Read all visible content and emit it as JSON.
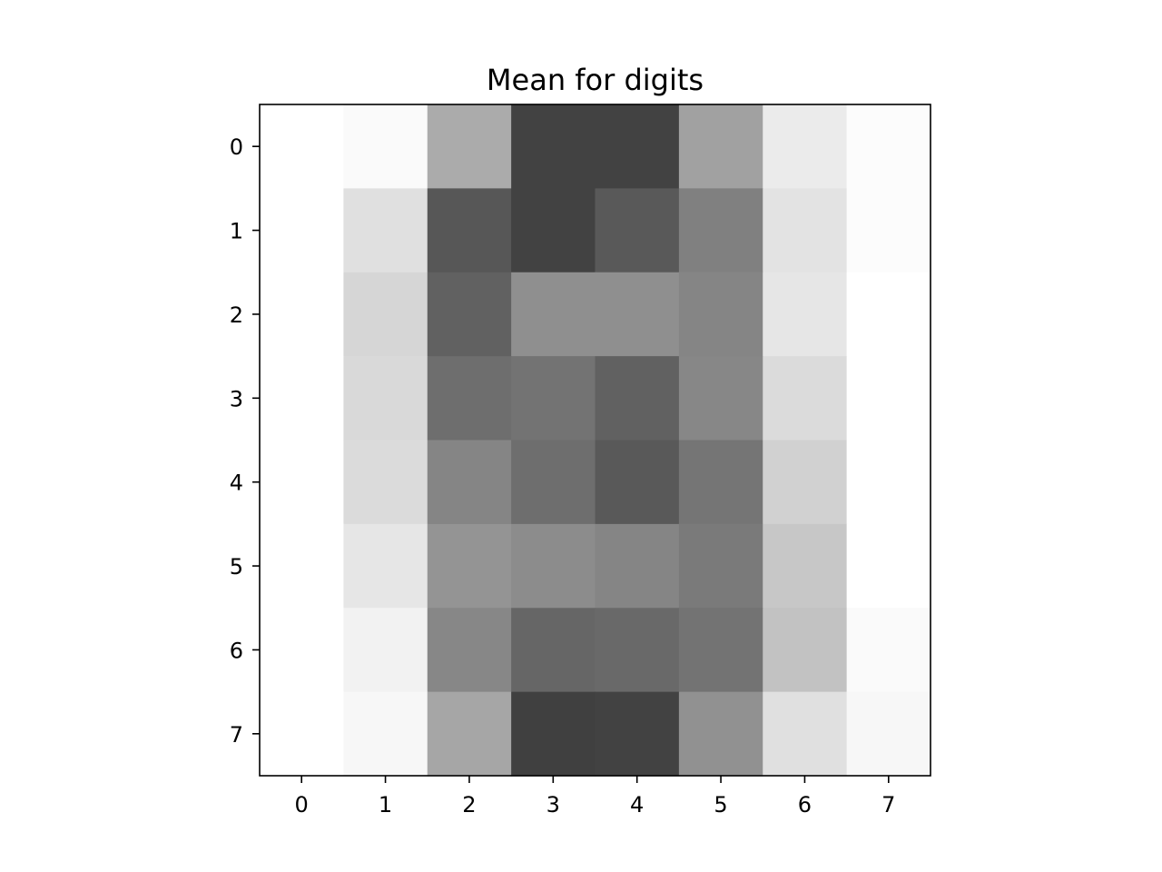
{
  "chart_data": {
    "type": "heatmap",
    "title": "Mean for digits",
    "xlabel": "",
    "ylabel": "",
    "x_ticks": [
      "0",
      "1",
      "2",
      "3",
      "4",
      "5",
      "6",
      "7"
    ],
    "y_ticks": [
      "0",
      "1",
      "2",
      "3",
      "4",
      "5",
      "6",
      "7"
    ],
    "colormap": "gray_r",
    "value_range": [
      0,
      1
    ],
    "values": [
      [
        0.0,
        0.02,
        0.33,
        0.74,
        0.74,
        0.37,
        0.08,
        0.01
      ],
      [
        0.0,
        0.12,
        0.66,
        0.74,
        0.65,
        0.5,
        0.11,
        0.01
      ],
      [
        0.0,
        0.16,
        0.62,
        0.44,
        0.44,
        0.48,
        0.1,
        0.0
      ],
      [
        0.0,
        0.15,
        0.57,
        0.55,
        0.62,
        0.47,
        0.14,
        0.0
      ],
      [
        0.0,
        0.14,
        0.48,
        0.57,
        0.65,
        0.54,
        0.18,
        0.0
      ],
      [
        0.0,
        0.1,
        0.42,
        0.45,
        0.48,
        0.52,
        0.22,
        0.0
      ],
      [
        0.0,
        0.05,
        0.47,
        0.6,
        0.59,
        0.55,
        0.24,
        0.02
      ],
      [
        0.0,
        0.03,
        0.35,
        0.75,
        0.74,
        0.43,
        0.12,
        0.03
      ]
    ],
    "grid": false,
    "legend": "none"
  }
}
